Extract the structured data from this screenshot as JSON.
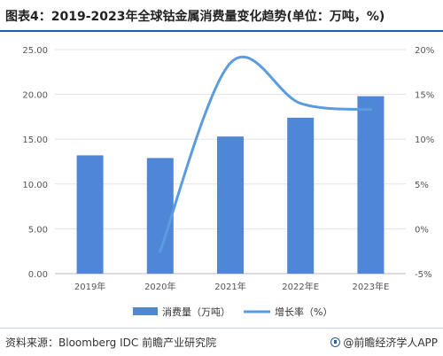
{
  "title": "图表4：2019-2023年全球钴金属消费量变化趋势(单位：万吨，%)",
  "footer": {
    "source": "资料来源：Bloomberg IDC 前瞻产业研究院",
    "brand": "@前瞻经济学人APP",
    "brand_icon": "qianzhan-logo-icon"
  },
  "colors": {
    "bar": "#4f86d6",
    "line": "#5b9be0",
    "grid": "#e3e3e3",
    "title_rule": "#1f5fa8"
  },
  "chart_data": {
    "type": "bar+line",
    "categories": [
      "2019年",
      "2020年",
      "2021年",
      "2022年E",
      "2023年E"
    ],
    "series": [
      {
        "name": "消费量（万吨）",
        "type": "bar",
        "axis": "left",
        "values": [
          13.2,
          12.9,
          15.3,
          17.4,
          19.8
        ]
      },
      {
        "name": "增长率（%）",
        "type": "line",
        "axis": "right",
        "smooth": true,
        "values": [
          null,
          -2.5,
          18.5,
          14.0,
          13.3
        ]
      }
    ],
    "left_axis": {
      "ylim": [
        0,
        25
      ],
      "ticks": [
        "0.00",
        "5.00",
        "10.00",
        "15.00",
        "20.00",
        "25.00"
      ]
    },
    "right_axis": {
      "ylim": [
        -5,
        20
      ],
      "ticks": [
        "-5%",
        "0%",
        "5%",
        "10%",
        "15%",
        "20%"
      ]
    },
    "grid": true,
    "legend_position": "bottom"
  }
}
